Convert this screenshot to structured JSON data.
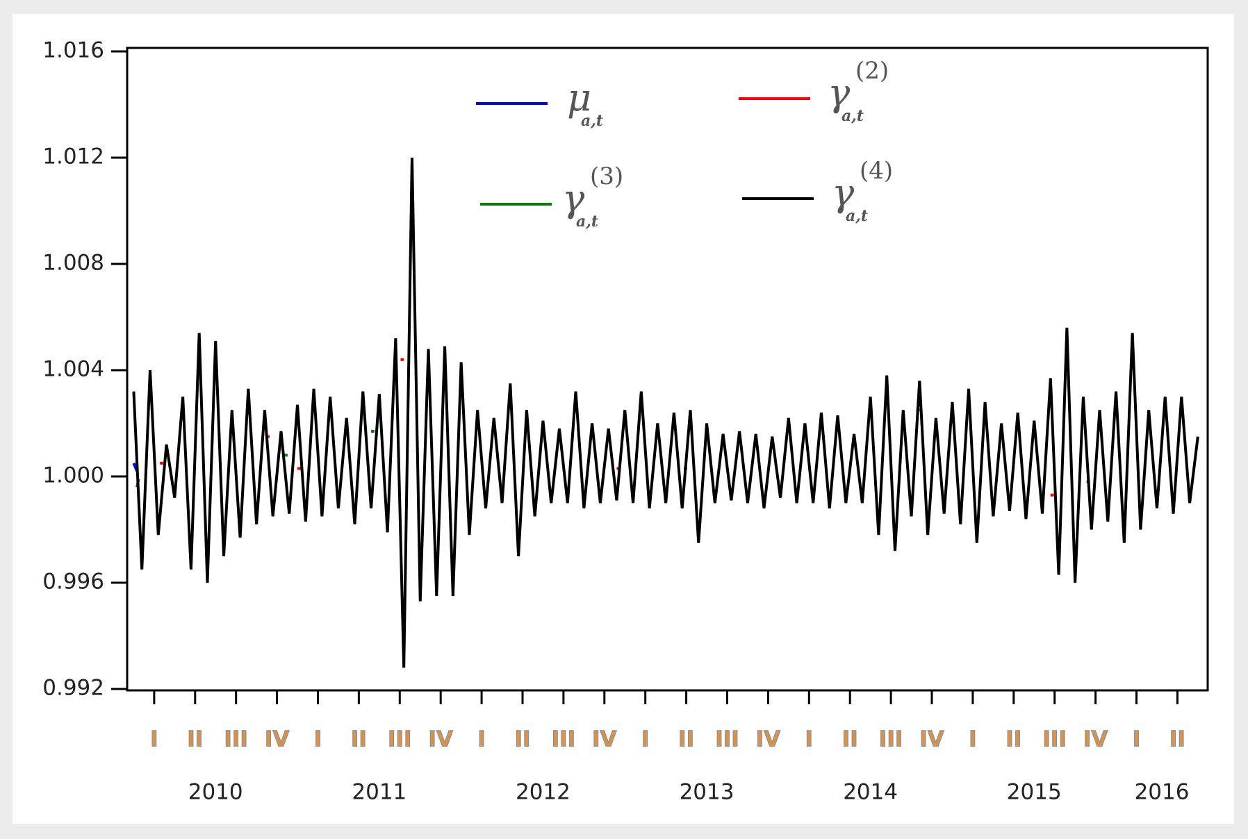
{
  "chart_data": {
    "type": "line",
    "ylim": [
      0.992,
      1.016
    ],
    "yticks": [
      0.992,
      0.996,
      {
        "value": 1,
        "label": "1.000"
      },
      1.004,
      1.008,
      1.012,
      1.016
    ],
    "xlim": [
      2009.96,
      2016.56
    ],
    "xticks": [
      {
        "value": 2010.125,
        "label": "I"
      },
      {
        "value": 2010.375,
        "label": "II"
      },
      {
        "value": 2010.625,
        "label": "III"
      },
      {
        "value": 2010.875,
        "label": "IV"
      },
      {
        "value": 2011.125,
        "label": "I"
      },
      {
        "value": 2011.375,
        "label": "II"
      },
      {
        "value": 2011.625,
        "label": "III"
      },
      {
        "value": 2011.875,
        "label": "IV"
      },
      {
        "value": 2012.125,
        "label": "I"
      },
      {
        "value": 2012.375,
        "label": "II"
      },
      {
        "value": 2012.625,
        "label": "III"
      },
      {
        "value": 2012.875,
        "label": "IV"
      },
      {
        "value": 2013.125,
        "label": "I"
      },
      {
        "value": 2013.375,
        "label": "II"
      },
      {
        "value": 2013.625,
        "label": "III"
      },
      {
        "value": 2013.875,
        "label": "IV"
      },
      {
        "value": 2014.125,
        "label": "I"
      },
      {
        "value": 2014.375,
        "label": "II"
      },
      {
        "value": 2014.625,
        "label": "III"
      },
      {
        "value": 2014.875,
        "label": "IV"
      },
      {
        "value": 2015.125,
        "label": "I"
      },
      {
        "value": 2015.375,
        "label": "II"
      },
      {
        "value": 2015.625,
        "label": "III"
      },
      {
        "value": 2015.875,
        "label": "IV"
      },
      {
        "value": 2016.125,
        "label": "I"
      },
      {
        "value": 2016.375,
        "label": "II"
      }
    ],
    "x_year_ticks": [
      {
        "value": 2010.5,
        "label": "2010"
      },
      {
        "value": 2011.5,
        "label": "2011"
      },
      {
        "value": 2012.5,
        "label": "2012"
      },
      {
        "value": 2013.5,
        "label": "2013"
      },
      {
        "value": 2014.5,
        "label": "2014"
      },
      {
        "value": 2015.5,
        "label": "2015"
      },
      {
        "value": 2016.28,
        "label": "2016"
      }
    ],
    "series": [
      {
        "name": "μ",
        "name_sub": "a,t",
        "color": "#0000ff",
        "x": [
          2010.0,
          2010.02,
          2013.34,
          2013.36,
          2013.38,
          2014.71,
          2014.73
        ],
        "values": [
          1.0005,
          1.0002,
          null,
          1.0003,
          1.0003,
          null,
          0.9993
        ]
      },
      {
        "name": "γ",
        "name_sub": "a,t",
        "name_sup": "(2)",
        "color": "#ff0000",
        "x": [
          2010.16,
          2010.18,
          2010.5,
          2010.81,
          2010.83,
          2010.9,
          2011.0,
          2011.02,
          2011.3,
          2011.63,
          2011.65,
          2012.5,
          2012.95,
          2012.97,
          2014.0,
          2014.78,
          2014.8,
          2015.2,
          2015.6,
          2015.62,
          2015.7,
          2015.82,
          2015.84
        ],
        "values": [
          1.0005,
          1.0005,
          null,
          1.0015,
          1.0015,
          null,
          1.0003,
          1.0003,
          null,
          1.0044,
          1.0044,
          null,
          1.0003,
          1.0003,
          null,
          1.0025,
          1.0025,
          null,
          0.9993,
          0.9993,
          null,
          0.9998,
          0.9998
        ]
      },
      {
        "name": "γ",
        "name_sub": "a,t",
        "name_sup": "(3)",
        "color": "#008000",
        "x": [
          2010.02,
          2010.03,
          2010.5,
          2010.92,
          2010.94,
          2011.2,
          2011.45,
          2011.47
        ],
        "values": [
          0.9996,
          0.9999,
          null,
          1.0008,
          1.0008,
          null,
          1.0017,
          1.0017
        ]
      },
      {
        "name": "γ",
        "name_sub": "a,t",
        "name_sup": "(4)",
        "color": "#000000",
        "x": [
          2010.0,
          2010.05,
          2010.1,
          2010.15,
          2010.2,
          2010.25,
          2010.3,
          2010.35,
          2010.4,
          2010.45,
          2010.5,
          2010.55,
          2010.6,
          2010.65,
          2010.7,
          2010.75,
          2010.8,
          2010.85,
          2010.9,
          2010.95,
          2011.0,
          2011.05,
          2011.1,
          2011.15,
          2011.2,
          2011.25,
          2011.3,
          2011.35,
          2011.4,
          2011.45,
          2011.5,
          2011.55,
          2011.6,
          2011.65,
          2011.7,
          2011.75,
          2011.8,
          2011.85,
          2011.9,
          2011.95,
          2012.0,
          2012.05,
          2012.1,
          2012.15,
          2012.2,
          2012.25,
          2012.3,
          2012.35,
          2012.4,
          2012.45,
          2012.5,
          2012.55,
          2012.6,
          2012.65,
          2012.7,
          2012.75,
          2012.8,
          2012.85,
          2012.9,
          2012.95,
          2013.0,
          2013.05,
          2013.1,
          2013.15,
          2013.2,
          2013.25,
          2013.3,
          2013.35,
          2013.4,
          2013.45,
          2013.5,
          2013.55,
          2013.6,
          2013.65,
          2013.7,
          2013.75,
          2013.8,
          2013.85,
          2013.9,
          2013.95,
          2014.0,
          2014.05,
          2014.1,
          2014.15,
          2014.2,
          2014.25,
          2014.3,
          2014.35,
          2014.4,
          2014.45,
          2014.5,
          2014.55,
          2014.6,
          2014.65,
          2014.7,
          2014.75,
          2014.8,
          2014.85,
          2014.9,
          2014.95,
          2015.0,
          2015.05,
          2015.1,
          2015.15,
          2015.2,
          2015.25,
          2015.3,
          2015.35,
          2015.4,
          2015.45,
          2015.5,
          2015.55,
          2015.6,
          2015.65,
          2015.7,
          2015.75,
          2015.8,
          2015.85,
          2015.9,
          2015.95,
          2016.0,
          2016.05,
          2016.1,
          2016.15,
          2016.2,
          2016.25,
          2016.3,
          2016.35,
          2016.4,
          2016.45,
          2016.5
        ],
        "values": [
          1.0032,
          0.9965,
          1.004,
          0.9978,
          1.0012,
          0.9992,
          1.003,
          0.9965,
          1.0054,
          0.996,
          1.0051,
          0.997,
          1.0025,
          0.9977,
          1.0033,
          0.9982,
          1.0025,
          0.9985,
          1.0017,
          0.9986,
          1.0027,
          0.9983,
          1.0033,
          0.9985,
          1.003,
          0.9988,
          1.0022,
          0.9982,
          1.0032,
          0.9988,
          1.0031,
          0.9979,
          1.0052,
          0.9928,
          1.012,
          0.9953,
          1.0048,
          0.9955,
          1.0049,
          0.9955,
          1.0043,
          0.9978,
          1.0025,
          0.9988,
          1.0022,
          0.999,
          1.0035,
          0.997,
          1.0025,
          0.9985,
          1.0021,
          0.999,
          1.0018,
          0.999,
          1.0032,
          0.9988,
          1.002,
          0.999,
          1.0018,
          0.9991,
          1.0025,
          0.999,
          1.0032,
          0.9988,
          1.002,
          0.999,
          1.0024,
          0.9988,
          1.0025,
          0.9975,
          1.002,
          0.999,
          1.0016,
          0.9991,
          1.0017,
          0.999,
          1.0016,
          0.9988,
          1.0015,
          0.9992,
          1.0022,
          0.999,
          1.002,
          0.999,
          1.0024,
          0.9988,
          1.0023,
          0.999,
          1.0016,
          0.999,
          1.003,
          0.9978,
          1.0038,
          0.9972,
          1.0025,
          0.9985,
          1.0036,
          0.9978,
          1.0022,
          0.9986,
          1.0028,
          0.9982,
          1.0033,
          0.9975,
          1.0028,
          0.9985,
          1.002,
          0.9987,
          1.0024,
          0.9984,
          1.0021,
          0.9986,
          1.0037,
          0.9963,
          1.0056,
          0.996,
          1.003,
          0.998,
          1.0025,
          0.9983,
          1.0032,
          0.9975,
          1.0054,
          0.998,
          1.0025,
          0.9988,
          1.003,
          0.9986,
          1.003,
          0.999,
          1.0015
        ]
      }
    ]
  }
}
